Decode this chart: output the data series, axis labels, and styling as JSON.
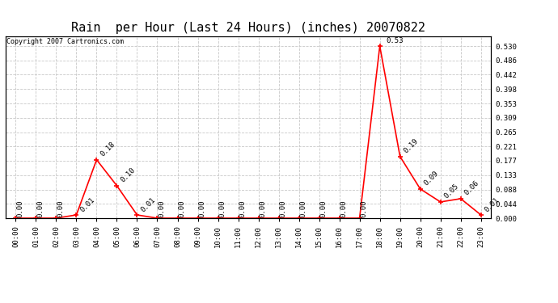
{
  "title": "Rain  per Hour (Last 24 Hours) (inches) 20070822",
  "copyright": "Copyright 2007 Cartronics.com",
  "x_labels": [
    "00:00",
    "01:00",
    "02:00",
    "03:00",
    "04:00",
    "05:00",
    "06:00",
    "07:00",
    "08:00",
    "09:00",
    "10:00",
    "11:00",
    "12:00",
    "13:00",
    "14:00",
    "15:00",
    "16:00",
    "17:00",
    "18:00",
    "19:00",
    "20:00",
    "21:00",
    "22:00",
    "23:00"
  ],
  "y_values": [
    0.0,
    0.0,
    0.0,
    0.01,
    0.18,
    0.1,
    0.01,
    0.0,
    0.0,
    0.0,
    0.0,
    0.0,
    0.0,
    0.0,
    0.0,
    0.0,
    0.0,
    0.0,
    0.53,
    0.19,
    0.09,
    0.05,
    0.06,
    0.01
  ],
  "line_color": "#ff0000",
  "marker_color": "#ff0000",
  "background_color": "#ffffff",
  "grid_color": "#c8c8c8",
  "title_fontsize": 11,
  "yticks": [
    0.0,
    0.044,
    0.088,
    0.133,
    0.177,
    0.221,
    0.265,
    0.309,
    0.353,
    0.398,
    0.442,
    0.486,
    0.53
  ],
  "ylim": [
    0.0,
    0.56
  ],
  "annotation_color": "#000000",
  "annotation_fontsize": 6.5,
  "tick_fontsize": 6.5
}
